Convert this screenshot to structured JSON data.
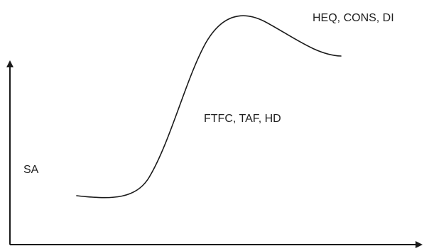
{
  "diagram": {
    "labels": {
      "peak": "HEQ, CONS, DI",
      "rise": "FTFC, TAF, HD",
      "start": "SA"
    },
    "colors": {
      "line": "#1a1a1a",
      "text": "#1f1f1f",
      "background": "#ffffff"
    }
  }
}
